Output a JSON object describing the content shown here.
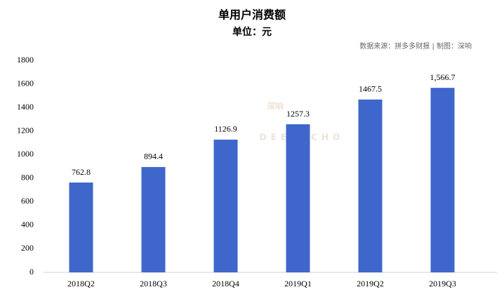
{
  "chart_data": {
    "type": "bar",
    "title": "单用户消费额",
    "subtitle": "单位：元",
    "source": "数据来源：拼多多财报 | 制图：深响",
    "watermark": [
      "深响",
      "DEEPECHO"
    ],
    "categories": [
      "2018Q2",
      "2018Q3",
      "2018Q4",
      "2019Q1",
      "2019Q2",
      "2019Q3"
    ],
    "values": [
      762.8,
      894.4,
      1126.9,
      1257.3,
      1467.5,
      1566.7
    ],
    "value_labels": [
      "762.8",
      "894.4",
      "1126.9",
      "1257.3",
      "1467.5",
      "1,566.7"
    ],
    "color": "#3f67cb",
    "ylim": [
      0,
      1800
    ],
    "yticks": [
      0,
      200,
      400,
      600,
      800,
      1000,
      1200,
      1400,
      1600,
      1800
    ],
    "grid": false
  }
}
